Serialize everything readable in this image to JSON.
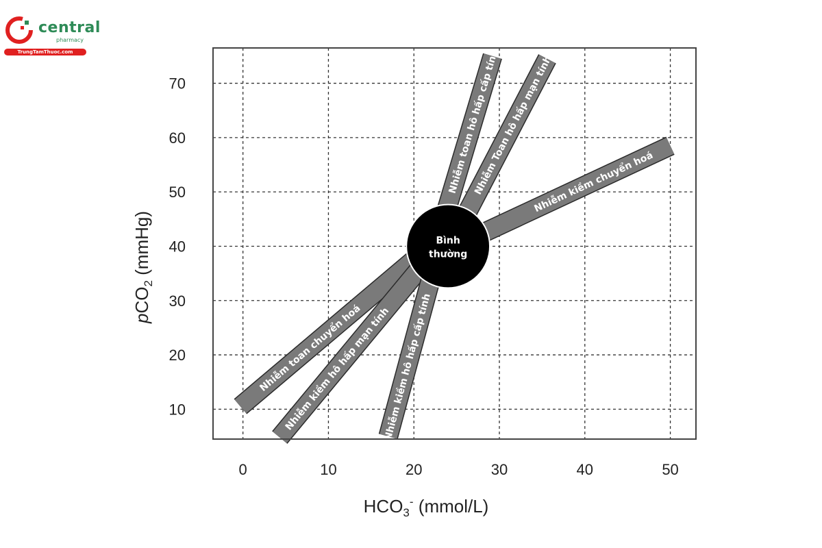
{
  "logo": {
    "brand": "central",
    "sub": "pharmacy",
    "strip": "TrungTamThuoc.com",
    "colors": {
      "green": "#2e8b57",
      "red": "#e02020"
    }
  },
  "chart_data": {
    "type": "area",
    "xlabel": "HCO3- (mmol/L)",
    "ylabel": "pCO2 (mmHg)",
    "xlim": [
      -3.5,
      53
    ],
    "ylim": [
      4.5,
      76.5
    ],
    "xticks": [
      0,
      10,
      20,
      30,
      40,
      50
    ],
    "yticks": [
      10,
      20,
      30,
      40,
      50,
      60,
      70
    ],
    "grid": true,
    "grid_style": "dashed",
    "colors": {
      "band_fill": "#7a7a7a",
      "band_stroke": "#2a2a2a",
      "normal_fill": "#000000"
    },
    "normal_region": {
      "label_line1": "Bình",
      "label_line2": "thường",
      "center": [
        24,
        40
      ],
      "radius_x": 4.8
    },
    "bands": [
      {
        "name": "Nhiễm toan hô hấp cấp tính",
        "start": [
          23.5,
          45
        ],
        "end": [
          29.2,
          75
        ]
      },
      {
        "name": "Nhiễm Toan hô hấp mạn tính",
        "start": [
          25.5,
          44
        ],
        "end": [
          35.6,
          74.5
        ]
      },
      {
        "name": "Nhiễm kiềm chuyển hoá",
        "start": [
          27.5,
          42
        ],
        "end": [
          50,
          58.5
        ]
      },
      {
        "name": "Nhiễm toan chuyển hoá",
        "start": [
          20,
          37.5
        ],
        "end": [
          -0.3,
          10.5
        ]
      },
      {
        "name": "Nhiễm kiềm hô hấp mạn tính",
        "start": [
          21,
          36.5
        ],
        "end": [
          4.3,
          4.8
        ]
      },
      {
        "name": "Nhiễm kiềm hô hấp cấp tính",
        "start": [
          22.5,
          37
        ],
        "end": [
          17,
          5
        ]
      }
    ]
  }
}
